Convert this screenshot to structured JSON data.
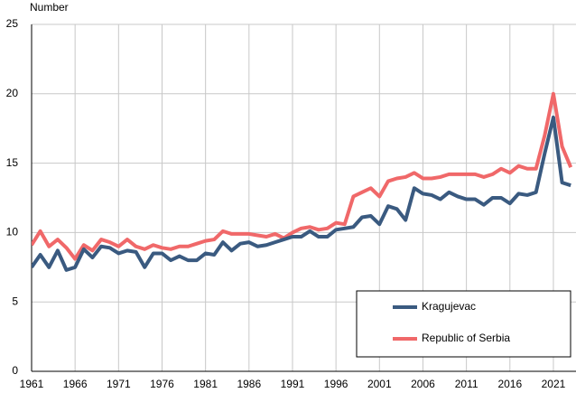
{
  "chart_data": {
    "type": "line",
    "y_axis_label": "Number",
    "x": [
      1961,
      1962,
      1963,
      1964,
      1965,
      1966,
      1967,
      1968,
      1969,
      1970,
      1971,
      1972,
      1973,
      1974,
      1975,
      1976,
      1977,
      1978,
      1979,
      1980,
      1981,
      1982,
      1983,
      1984,
      1985,
      1986,
      1987,
      1988,
      1989,
      1990,
      1991,
      1992,
      1993,
      1994,
      1995,
      1996,
      1997,
      1998,
      1999,
      2000,
      2001,
      2002,
      2003,
      2004,
      2005,
      2006,
      2007,
      2008,
      2009,
      2010,
      2011,
      2012,
      2013,
      2014,
      2015,
      2016,
      2017,
      2018,
      2019,
      2020,
      2021,
      2022,
      2023
    ],
    "series": [
      {
        "name": "Kragujevac",
        "color": "#3a5a80",
        "values": [
          7.5,
          8.4,
          7.5,
          8.7,
          7.3,
          7.5,
          8.8,
          8.2,
          9.0,
          8.9,
          8.5,
          8.7,
          8.6,
          7.5,
          8.5,
          8.5,
          8.0,
          8.3,
          8.0,
          8.0,
          8.5,
          8.4,
          9.3,
          8.7,
          9.2,
          9.3,
          9.0,
          9.1,
          9.3,
          9.5,
          9.7,
          9.7,
          10.1,
          9.7,
          9.7,
          10.2,
          10.3,
          10.4,
          11.1,
          11.2,
          10.6,
          11.9,
          11.7,
          10.9,
          13.2,
          12.8,
          12.7,
          12.4,
          12.9,
          12.6,
          12.4,
          12.4,
          12.0,
          12.5,
          12.5,
          12.1,
          12.8,
          12.7,
          12.9,
          15.7,
          18.3,
          13.6,
          13.4
        ]
      },
      {
        "name": "Republic of Serbia",
        "color": "#f06869",
        "values": [
          9.1,
          10.1,
          9.0,
          9.5,
          8.9,
          8.1,
          9.1,
          8.7,
          9.5,
          9.3,
          9.0,
          9.5,
          9.0,
          8.8,
          9.1,
          8.9,
          8.8,
          9.0,
          9.0,
          9.2,
          9.4,
          9.5,
          10.1,
          9.9,
          9.9,
          9.9,
          9.8,
          9.7,
          9.9,
          9.6,
          10.0,
          10.3,
          10.4,
          10.2,
          10.3,
          10.7,
          10.6,
          12.6,
          12.9,
          13.2,
          12.6,
          13.7,
          13.9,
          14.0,
          14.3,
          13.9,
          13.9,
          14.0,
          14.2,
          14.2,
          14.2,
          14.2,
          14.0,
          14.2,
          14.6,
          14.3,
          14.8,
          14.6,
          14.6,
          17.0,
          20.0,
          16.2,
          14.7
        ]
      }
    ],
    "xlim": [
      1961,
      2023.6
    ],
    "xticks": [
      1961,
      1966,
      1971,
      1976,
      1981,
      1986,
      1991,
      1996,
      2001,
      2006,
      2011,
      2016,
      2021
    ],
    "ylim": [
      0,
      25
    ],
    "yticks": [
      0,
      5,
      10,
      15,
      20,
      25
    ],
    "grid": true,
    "legend": "lower right"
  }
}
